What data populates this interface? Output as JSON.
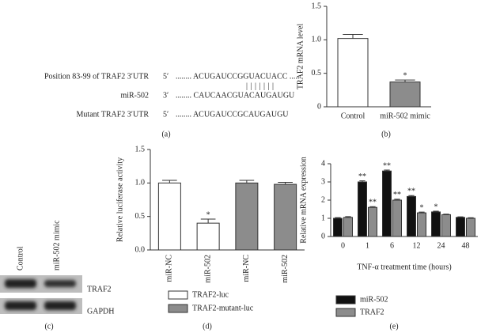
{
  "panel_a": {
    "rows": [
      {
        "label": "Position 83-99 of TRAF2 3′UTR",
        "end": "5′",
        "sequence": "........ ACUGAUCCGGUACUACC ....."
      },
      {
        "label": "miR-502",
        "end": "3′",
        "sequence": "........ CAUCAACGUACAUGAUGU"
      },
      {
        "label": "Mutant TRAF2 3′UTR",
        "end": "5′",
        "sequence": "........ ACUGAUCCGCAUGAUGU"
      }
    ],
    "pairing": "|||||||",
    "caption": "(a)"
  },
  "panel_c": {
    "lanes": [
      "Control",
      "miR-502 mimic"
    ],
    "bands": [
      "TRAF2",
      "GAPDH"
    ],
    "caption": "(c)"
  },
  "chart_data": [
    {
      "type": "bar",
      "caption": "(b)",
      "y_label": "TRAF2 mRNA level",
      "categories": [
        "Control",
        "miR-502 mimic"
      ],
      "series": [
        {
          "values": [
            1.02,
            0.37
          ],
          "errors": [
            0.06,
            0.03
          ],
          "significance": [
            null,
            "*"
          ],
          "colors": [
            "#ffffff",
            "#8c8c8c"
          ]
        }
      ],
      "ylim": [
        0,
        1.5
      ],
      "yticks": [
        0,
        0.5,
        {
          "value": 1,
          "label": "1.0"
        },
        1.5
      ]
    },
    {
      "type": "bar",
      "caption": "(d)",
      "y_label": "Relative luciferase activity",
      "categories": [
        "miR-NC",
        "miR-502",
        "miR-NC",
        "miR-502"
      ],
      "series": [
        {
          "name": "TRAF2-luc",
          "color": "#ffffff",
          "values": [
            1.0,
            0.4,
            null,
            null
          ],
          "errors": [
            0.04,
            0.06,
            null,
            null
          ],
          "significance": [
            null,
            "*",
            null,
            null
          ]
        },
        {
          "name": "TRAF2-mutant-luc",
          "color": "#8c8c8c",
          "values": [
            null,
            null,
            1.0,
            0.98
          ],
          "errors": [
            null,
            null,
            0.04,
            0.03
          ],
          "significance": [
            null,
            null,
            null,
            null
          ]
        }
      ],
      "ylim": [
        0,
        1.5
      ],
      "yticks": [
        {
          "value": 0,
          "label": "0.0"
        },
        0.5,
        {
          "value": 1,
          "label": "1.0"
        },
        1.5
      ]
    },
    {
      "type": "bar",
      "caption": "(e)",
      "y_label": "Relative mRNA expression",
      "x_label": "TNF-α treatment time (hours)",
      "categories": [
        "0",
        "1",
        "6",
        "12",
        "24",
        "48"
      ],
      "series": [
        {
          "name": "miR-502",
          "color": "#111111",
          "values": [
            1.0,
            3.0,
            3.6,
            2.2,
            1.35,
            1.05
          ],
          "errors": [
            0.04,
            0.06,
            0.05,
            0.05,
            0.04,
            0.03
          ],
          "significance": [
            null,
            "**",
            "**",
            "**",
            "*",
            null
          ]
        },
        {
          "name": "TRAF2",
          "color": "#8c8c8c",
          "values": [
            1.05,
            1.6,
            2.0,
            1.3,
            1.2,
            1.0
          ],
          "errors": [
            0.04,
            0.04,
            0.05,
            0.04,
            0.03,
            0.03
          ],
          "significance": [
            null,
            "**",
            "**",
            "*",
            null,
            null
          ]
        }
      ],
      "ylim": [
        0,
        4
      ],
      "yticks": [
        0,
        1,
        2,
        3,
        4
      ]
    }
  ]
}
